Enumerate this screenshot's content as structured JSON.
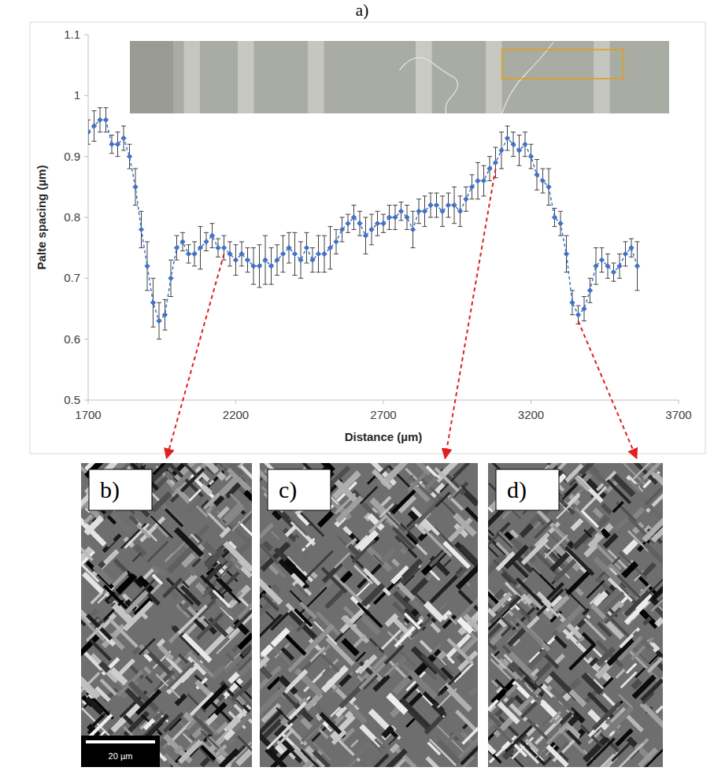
{
  "chart_data": {
    "type": "line",
    "title": "a)",
    "x_label": "Distance (µm)",
    "y_label": "Palte spacing (µm)",
    "xlim": [
      1700,
      3700
    ],
    "xticks": [
      1700,
      2200,
      2700,
      3200,
      3700
    ],
    "ylim": [
      0.5,
      1.1
    ],
    "yticks": [
      0.5,
      0.6,
      0.7,
      0.8,
      0.9,
      1,
      1.1
    ],
    "grid": false,
    "x": [
      1700,
      1720,
      1740,
      1760,
      1780,
      1800,
      1820,
      1840,
      1860,
      1880,
      1900,
      1920,
      1940,
      1960,
      1980,
      2000,
      2020,
      2040,
      2060,
      2080,
      2100,
      2120,
      2140,
      2160,
      2180,
      2200,
      2220,
      2240,
      2260,
      2280,
      2300,
      2320,
      2340,
      2360,
      2380,
      2400,
      2420,
      2440,
      2460,
      2480,
      2500,
      2520,
      2540,
      2560,
      2580,
      2600,
      2620,
      2640,
      2660,
      2680,
      2700,
      2720,
      2740,
      2760,
      2780,
      2800,
      2820,
      2840,
      2860,
      2880,
      2900,
      2920,
      2940,
      2960,
      2980,
      3000,
      3020,
      3040,
      3060,
      3080,
      3100,
      3120,
      3140,
      3160,
      3180,
      3200,
      3220,
      3240,
      3260,
      3280,
      3300,
      3320,
      3340,
      3360,
      3380,
      3400,
      3420,
      3440,
      3460,
      3480,
      3500,
      3520,
      3540,
      3560
    ],
    "series": [
      {
        "color": "#4472c4",
        "marker": "diamond",
        "line_style": "dashed",
        "values": [
          0.94,
          0.95,
          0.96,
          0.96,
          0.92,
          0.92,
          0.93,
          0.9,
          0.85,
          0.78,
          0.72,
          0.66,
          0.63,
          0.64,
          0.7,
          0.75,
          0.76,
          0.74,
          0.74,
          0.75,
          0.76,
          0.77,
          0.75,
          0.75,
          0.74,
          0.73,
          0.74,
          0.73,
          0.72,
          0.72,
          0.73,
          0.72,
          0.73,
          0.74,
          0.75,
          0.74,
          0.73,
          0.75,
          0.73,
          0.74,
          0.74,
          0.75,
          0.76,
          0.78,
          0.79,
          0.8,
          0.79,
          0.77,
          0.78,
          0.79,
          0.79,
          0.8,
          0.8,
          0.81,
          0.8,
          0.78,
          0.81,
          0.81,
          0.82,
          0.82,
          0.81,
          0.82,
          0.82,
          0.81,
          0.83,
          0.85,
          0.86,
          0.86,
          0.88,
          0.89,
          0.91,
          0.93,
          0.92,
          0.91,
          0.92,
          0.9,
          0.87,
          0.86,
          0.85,
          0.8,
          0.79,
          0.74,
          0.66,
          0.64,
          0.65,
          0.68,
          0.72,
          0.73,
          0.72,
          0.71,
          0.72,
          0.74,
          0.75,
          0.72
        ],
        "errors": [
          0.02,
          0.025,
          0.02,
          0.02,
          0.015,
          0.02,
          0.02,
          0.02,
          0.03,
          0.03,
          0.04,
          0.04,
          0.03,
          0.025,
          0.03,
          0.02,
          0.015,
          0.015,
          0.02,
          0.035,
          0.015,
          0.02,
          0.015,
          0.02,
          0.02,
          0.025,
          0.02,
          0.02,
          0.03,
          0.035,
          0.04,
          0.03,
          0.025,
          0.03,
          0.025,
          0.035,
          0.03,
          0.025,
          0.02,
          0.03,
          0.03,
          0.035,
          0.02,
          0.02,
          0.015,
          0.02,
          0.02,
          0.03,
          0.025,
          0.02,
          0.015,
          0.02,
          0.02,
          0.015,
          0.02,
          0.03,
          0.02,
          0.025,
          0.02,
          0.02,
          0.025,
          0.02,
          0.03,
          0.025,
          0.02,
          0.02,
          0.03,
          0.025,
          0.02,
          0.025,
          0.03,
          0.02,
          0.02,
          0.025,
          0.02,
          0.02,
          0.025,
          0.02,
          0.03,
          0.015,
          0.02,
          0.03,
          0.02,
          0.015,
          0.02,
          0.02,
          0.03,
          0.02,
          0.02,
          0.015,
          0.02,
          0.02,
          0.015,
          0.04
        ]
      }
    ]
  },
  "micrographs": {
    "labels": [
      "b)",
      "c)",
      "d)"
    ],
    "scale_bar": "20 µm"
  }
}
